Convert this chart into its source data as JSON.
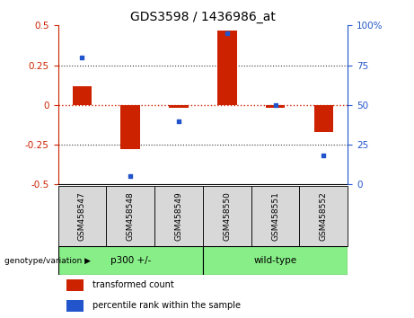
{
  "title": "GDS3598 / 1436986_at",
  "samples": [
    "GSM458547",
    "GSM458548",
    "GSM458549",
    "GSM458550",
    "GSM458551",
    "GSM458552"
  ],
  "transformed_count": [
    0.12,
    -0.28,
    -0.02,
    0.47,
    -0.02,
    -0.17
  ],
  "percentile_rank": [
    80,
    5,
    40,
    95,
    50,
    18
  ],
  "ylim_left": [
    -0.5,
    0.5
  ],
  "ylim_right": [
    0,
    100
  ],
  "yticks_left": [
    -0.5,
    -0.25,
    0,
    0.25,
    0.5
  ],
  "yticks_right": [
    0,
    25,
    50,
    75,
    100
  ],
  "bar_color": "#cc2200",
  "scatter_color": "#2255cc",
  "group1_label": "p300 +/-",
  "group2_label": "wild-type",
  "group_color": "#88ee88",
  "group_label_prefix": "genotype/variation",
  "legend_bar_label": "transformed count",
  "legend_scatter_label": "percentile rank within the sample",
  "bar_width": 0.4,
  "zero_line_color": "#cc2200",
  "dotted_line_color": "#333333",
  "title_fontsize": 10,
  "tick_fontsize": 7.5,
  "label_fontsize": 7.5,
  "sample_fontsize": 6.5
}
